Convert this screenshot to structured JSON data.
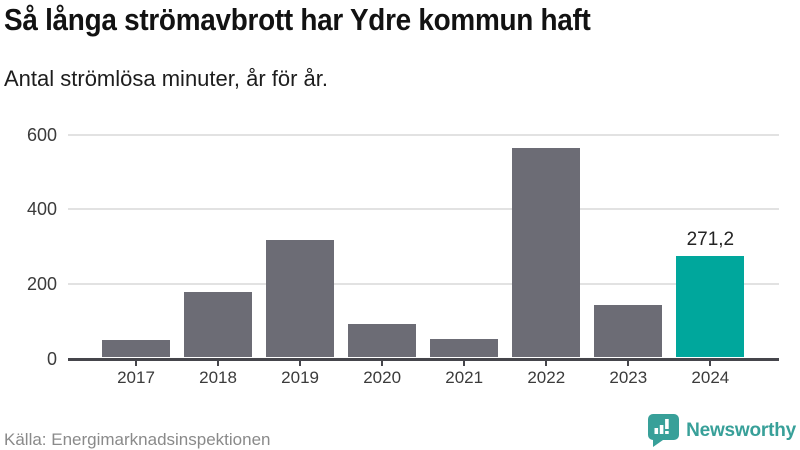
{
  "header": {
    "title": "Så långa strömavbrott har Ydre kommun haft",
    "subtitle": "Antal strömlösa minuter, år för år."
  },
  "chart_data": {
    "type": "bar",
    "title": "Så långa strömavbrott har Ydre kommun haft",
    "subtitle": "Antal strömlösa minuter, år för år.",
    "categories": [
      "2017",
      "2018",
      "2019",
      "2020",
      "2021",
      "2022",
      "2023",
      "2024"
    ],
    "values": [
      47,
      176,
      313,
      90,
      49,
      561,
      141,
      271.2
    ],
    "highlight_index": 7,
    "highlight_label": "271,2",
    "xlabel": "",
    "ylabel": "Antal strömlösa minuter",
    "ylim": [
      0,
      600
    ],
    "yticks": [
      0,
      200,
      400,
      600
    ],
    "grid": "horizontal",
    "legend": "none",
    "bar_color": "#6c6c75",
    "highlight_color": "#00a79c"
  },
  "footer": {
    "source": "Källa: Energimarknadsinspektionen",
    "brand": "Newsworthy"
  },
  "colors": {
    "title_text": "#121212",
    "axis_text": "#3b3b3b",
    "axis_line": "#45454b",
    "gridline": "#e2e2e2",
    "bar_gray": "#6c6c75",
    "accent_teal": "#00a79c",
    "logo_teal": "#38a099",
    "source_text": "#8a8a8a",
    "background": "#ffffff"
  }
}
